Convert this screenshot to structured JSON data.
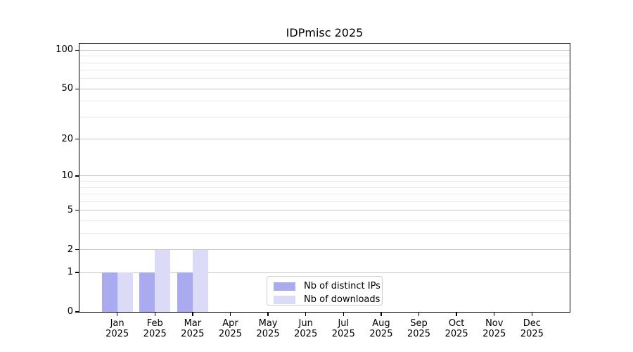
{
  "page": {
    "background": "#ffffff"
  },
  "chart_data": {
    "type": "bar",
    "title": "IDPmisc 2025",
    "categories": [
      "Jan",
      "Feb",
      "Mar",
      "Apr",
      "May",
      "Jun",
      "Jul",
      "Aug",
      "Sep",
      "Oct",
      "Nov",
      "Dec"
    ],
    "x_tick_year": "2025",
    "series": [
      {
        "name": "Nb of distinct IPs",
        "color": "#aaaaf0",
        "values": [
          1,
          1,
          1,
          0,
          0,
          0,
          0,
          0,
          0,
          0,
          0,
          0
        ]
      },
      {
        "name": "Nb of downloads",
        "color": "#dbdbf8",
        "values": [
          1,
          2,
          2,
          0,
          0,
          0,
          0,
          0,
          0,
          0,
          0,
          0
        ]
      }
    ],
    "y_axis": {
      "scale": "log1p",
      "range": [
        0,
        100
      ],
      "major_ticks": [
        0,
        1,
        2,
        5,
        10,
        20,
        50,
        100
      ],
      "minor_ticks": [
        3,
        4,
        6,
        7,
        8,
        9,
        30,
        40,
        60,
        70,
        80,
        90
      ]
    },
    "grid": {
      "enabled": true,
      "major_color": "#c8c8c8",
      "minor_color": "#ebebeb"
    },
    "legend": {
      "position": "bottom-center"
    },
    "frame_color": "#000000"
  }
}
